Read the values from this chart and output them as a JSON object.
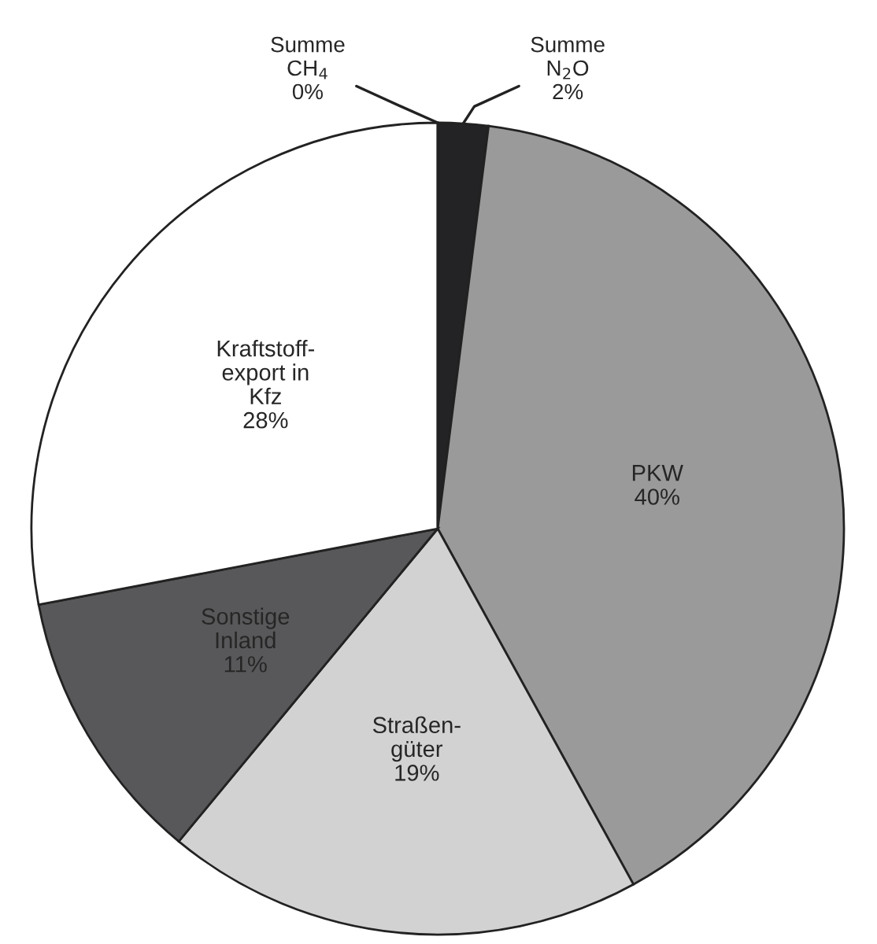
{
  "chart_data": {
    "type": "pie",
    "categories": [
      "Summe\nN$_{2}$O",
      "PKW",
      "Straßen-\ngüter",
      "Sonstige\nInland",
      "Kraftstoff-\nexport in\nKfz",
      "Summe\nCH$_{4}$"
    ],
    "values": [
      2,
      40,
      19,
      11,
      28,
      0
    ],
    "value_labels": [
      "2%",
      "40%",
      "19%",
      "11%",
      "28%",
      "0%"
    ],
    "colors": [
      "#232325",
      "#9a9a9a",
      "#d2d2d2",
      "#58585a",
      "#ffffff",
      "#b0b0b0"
    ],
    "legend": false
  }
}
